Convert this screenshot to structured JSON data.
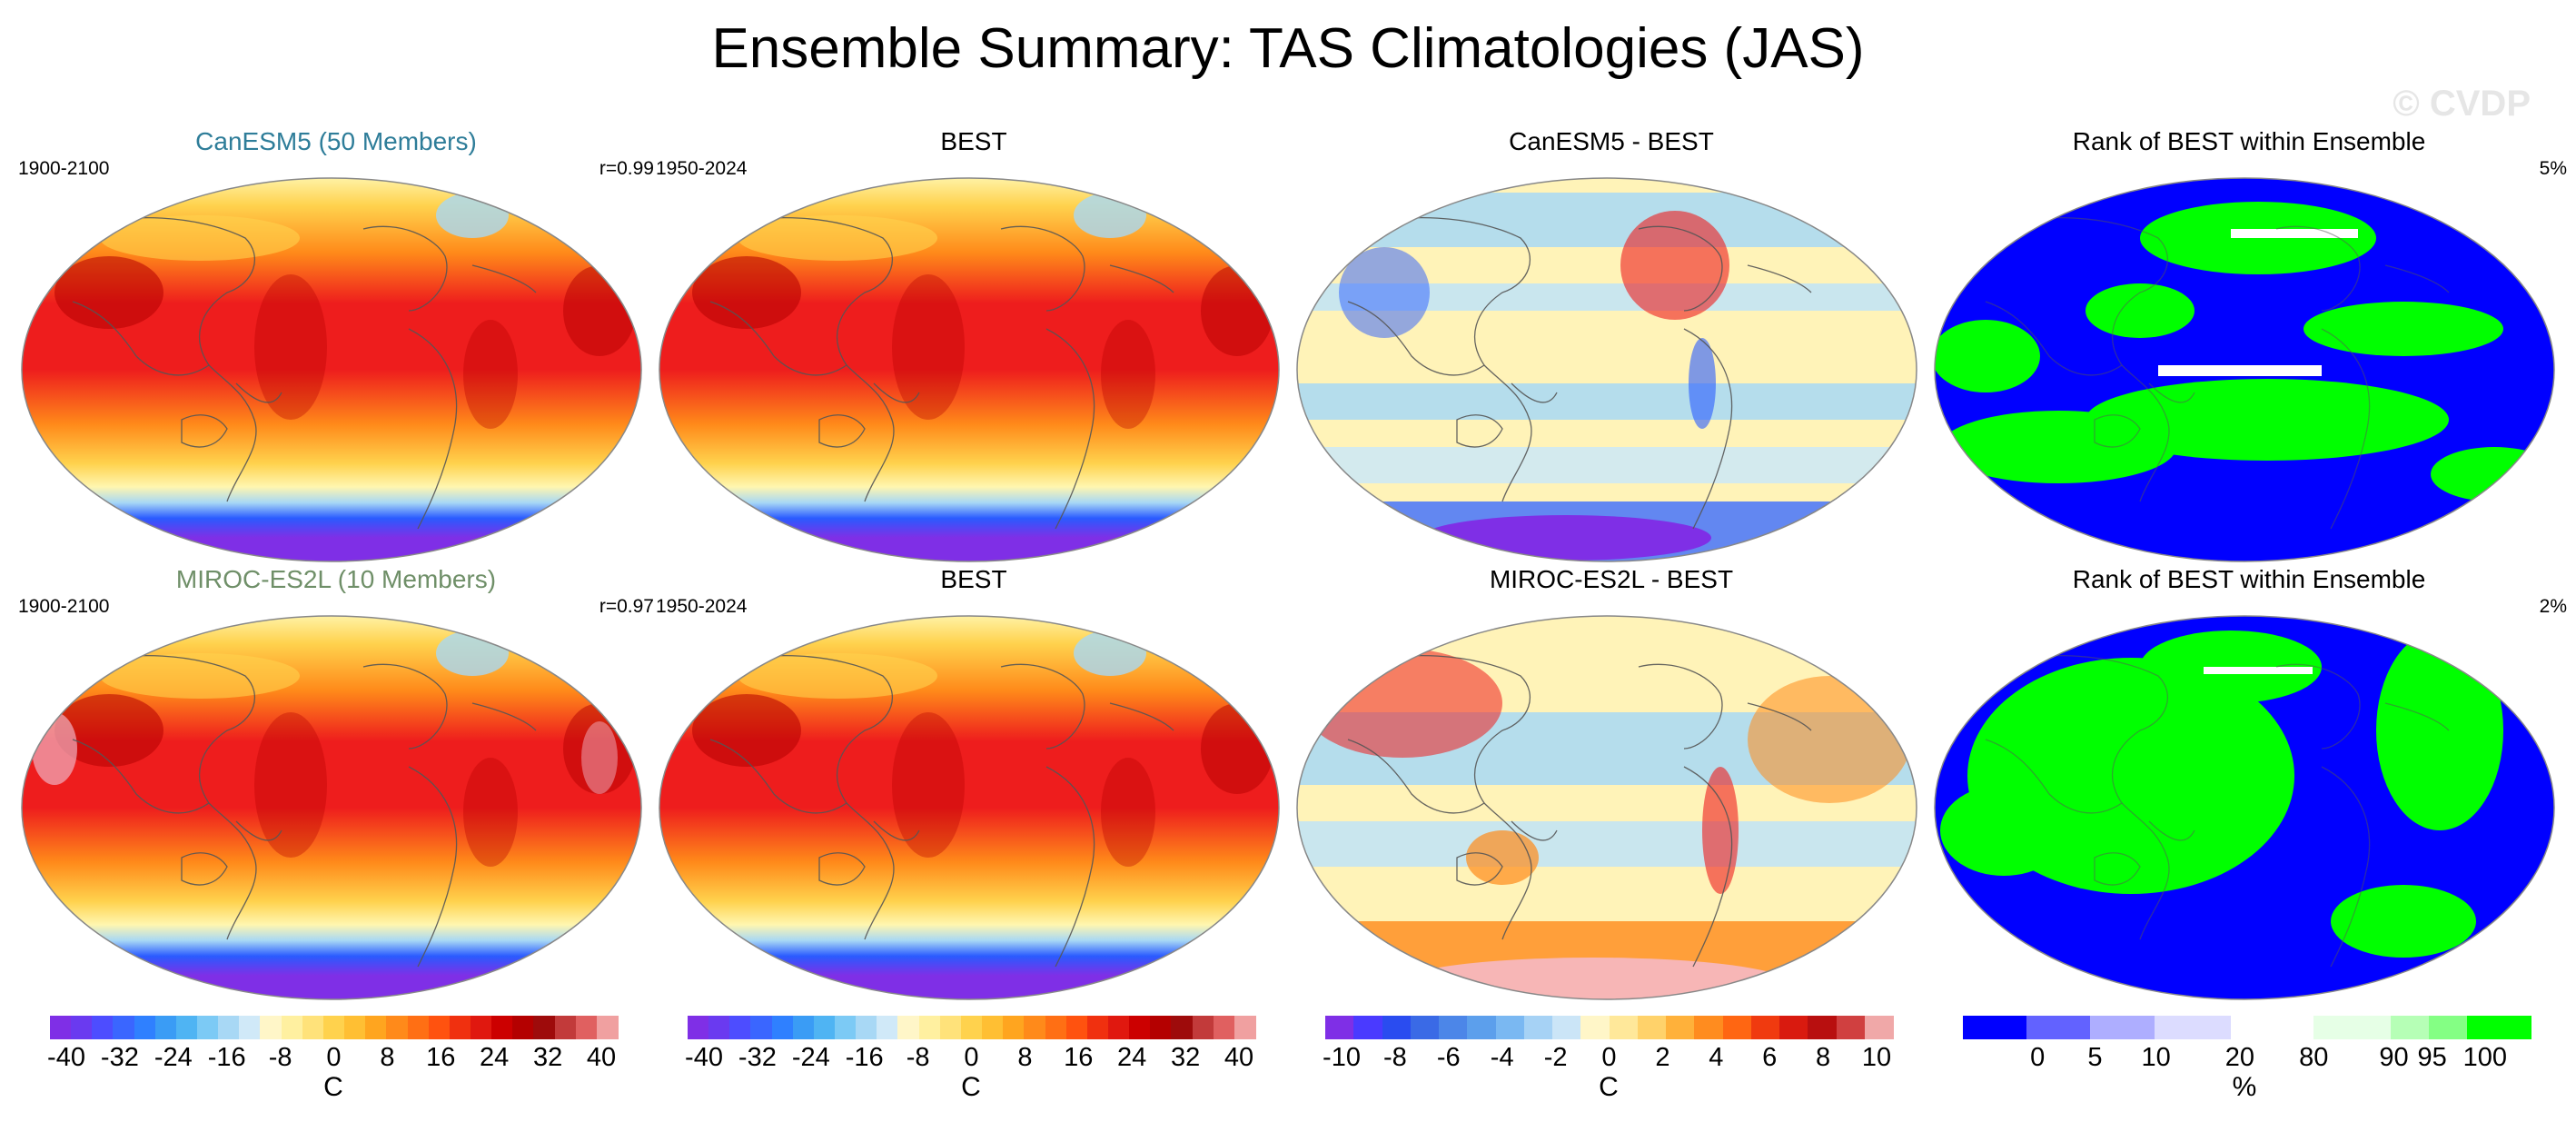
{
  "title": "Ensemble Summary: TAS Climatologies (JAS)",
  "watermark": "© CVDP",
  "colors": {
    "cold_deep": "#7f2fe6",
    "cold_blue": "#2a5bff",
    "light_blue": "#a8d8f5",
    "pale": "#fff6b0",
    "warm_yellow": "#ffd24d",
    "orange": "#ff8a1a",
    "red": "#ee1d1d",
    "dark_red": "#b40000",
    "rank_blue": "#0000ff",
    "rank_green": "#00ff00",
    "coast": "#555555"
  },
  "rows": [
    {
      "panels": [
        {
          "title": "CanESM5 (50 Members)",
          "title_color": "#2e7d99",
          "left": "1900-2100",
          "right": "r=0.99",
          "kind": "clim"
        },
        {
          "title": "BEST",
          "title_color": "#000000",
          "left": "1950-2024",
          "right": "",
          "kind": "clim"
        },
        {
          "title": "CanESM5 - BEST",
          "title_color": "#000000",
          "left": "",
          "right": "",
          "kind": "diff"
        },
        {
          "title": "Rank of BEST within Ensemble",
          "title_color": "#000000",
          "left": "",
          "right": "5%",
          "kind": "rank"
        }
      ]
    },
    {
      "panels": [
        {
          "title": "MIROC-ES2L (10 Members)",
          "title_color": "#6f8f68",
          "left": "1900-2100",
          "right": "r=0.97",
          "kind": "clim"
        },
        {
          "title": "BEST",
          "title_color": "#000000",
          "left": "1950-2024",
          "right": "",
          "kind": "clim"
        },
        {
          "title": "MIROC-ES2L - BEST",
          "title_color": "#000000",
          "left": "",
          "right": "",
          "kind": "diff"
        },
        {
          "title": "Rank of BEST within Ensemble",
          "title_color": "#000000",
          "left": "",
          "right": "2%",
          "kind": "rank"
        }
      ]
    }
  ],
  "colorbars": [
    {
      "name": "clim",
      "ticks": [
        "-40",
        "-32",
        "-24",
        "-16",
        "-8",
        "0",
        "8",
        "16",
        "24",
        "32",
        "40"
      ],
      "unit": "C"
    },
    {
      "name": "clim",
      "ticks": [
        "-40",
        "-32",
        "-24",
        "-16",
        "-8",
        "0",
        "8",
        "16",
        "24",
        "32",
        "40"
      ],
      "unit": "C"
    },
    {
      "name": "diff",
      "ticks": [
        "-10",
        "-8",
        "-6",
        "-4",
        "-2",
        "0",
        "2",
        "4",
        "6",
        "8",
        "10"
      ],
      "unit": "C"
    },
    {
      "name": "rank",
      "ticks": [
        "0",
        "5",
        "10",
        "20",
        "80",
        "90",
        "95",
        "100"
      ],
      "unit": "%"
    }
  ]
}
